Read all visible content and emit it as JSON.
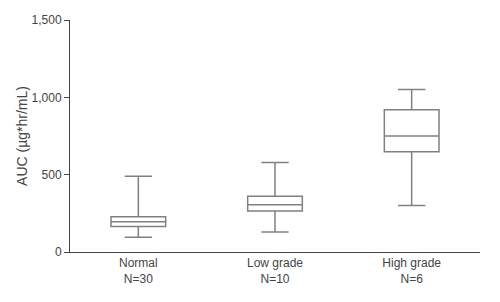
{
  "chart_data": {
    "type": "box",
    "categories": [
      "Normal\nN=30",
      "Low grade\nN=10",
      "High grade\nN=6"
    ],
    "boxes": [
      {
        "whislo": 95,
        "q1": 165,
        "med": 195,
        "q3": 228,
        "whishi": 490
      },
      {
        "whislo": 130,
        "q1": 265,
        "med": 305,
        "q3": 360,
        "whishi": 578
      },
      {
        "whislo": 300,
        "q1": 648,
        "med": 750,
        "q3": 920,
        "whishi": 1050
      }
    ],
    "ylabel": "AUC (µg*hr/mL)",
    "ylim": [
      0,
      1500
    ],
    "yticks": [
      0,
      500,
      {
        "value": 1000,
        "label": "1,000"
      },
      {
        "value": 1500,
        "label": "1,500"
      }
    ],
    "color": "#808080",
    "grid": false
  }
}
